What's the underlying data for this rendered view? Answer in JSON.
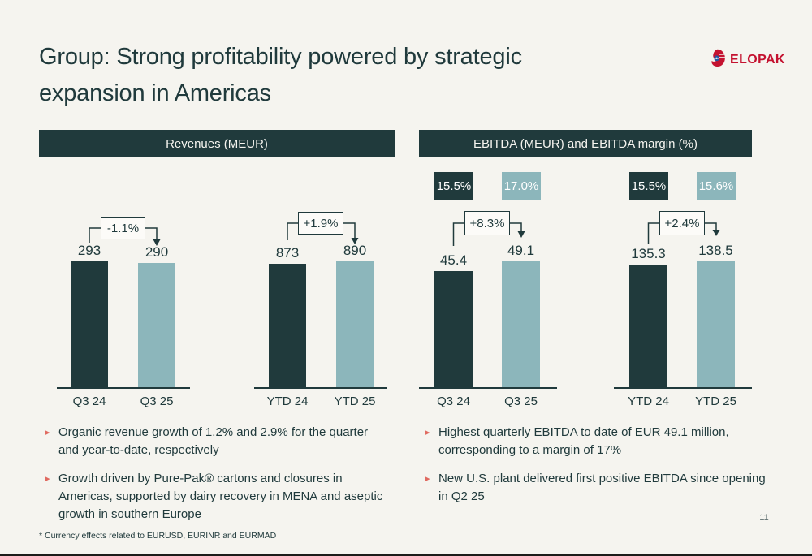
{
  "slide": {
    "title_lines": [
      "Group: Strong profitability powered by strategic",
      "expansion in Americas"
    ],
    "logo_text": "ELOPAK",
    "page_number": "11",
    "footnote": "* Currency effects related to EURUSD, EURINR and EURMAD"
  },
  "sections": [
    {
      "header": "Revenues (MEUR)",
      "bullets": [
        "Organic revenue growth of 1.2% and 2.9% for the quarter and year-to-date, respectively",
        "Growth driven by Pure-Pak® cartons and closures in Americas, supported by dairy recovery in MENA and aseptic growth in southern Europe"
      ]
    },
    {
      "header": "EBITDA (MEUR) and EBITDA margin (%)",
      "bullets": [
        "Highest quarterly EBITDA to date of EUR 49.1 million, corresponding to a margin of 17%",
        "New U.S. plant delivered first positive EBITDA since opening in Q2 25"
      ]
    }
  ],
  "colors": {
    "background": "#f5f4ef",
    "dark_teal": "#203a3c",
    "light_teal": "#8cb6bb",
    "logo_red": "#c41230",
    "bullet_marker": "#e0695f",
    "delta_box_bg": "#fcfbf8"
  },
  "chart_data": [
    {
      "type": "bar",
      "title": "Revenues (MEUR)",
      "categories": [
        "Q3 24",
        "Q3 25"
      ],
      "values": [
        293,
        290
      ],
      "value_labels": [
        "293",
        "290"
      ],
      "delta_label": "-1.1%",
      "grid": false,
      "legend": "none"
    },
    {
      "type": "bar",
      "title": "Revenues (MEUR)",
      "categories": [
        "YTD 24",
        "YTD 25"
      ],
      "values": [
        873,
        890
      ],
      "value_labels": [
        "873",
        "890"
      ],
      "delta_label": "+1.9%",
      "grid": false,
      "legend": "none"
    },
    {
      "type": "bar",
      "title": "EBITDA (MEUR) and EBITDA margin (%)",
      "categories": [
        "Q3 24",
        "Q3 25"
      ],
      "values": [
        45.4,
        49.1
      ],
      "value_labels": [
        "45.4",
        "49.1"
      ],
      "margin_labels": [
        "15.5%",
        "17.0%"
      ],
      "delta_label": "+8.3%",
      "grid": false,
      "legend": "none"
    },
    {
      "type": "bar",
      "title": "EBITDA (MEUR) and EBITDA margin (%)",
      "categories": [
        "YTD 24",
        "YTD 25"
      ],
      "values": [
        135.3,
        138.5
      ],
      "value_labels": [
        "135.3",
        "138.5"
      ],
      "margin_labels": [
        "15.5%",
        "15.6%"
      ],
      "delta_label": "+2.4%",
      "grid": false,
      "legend": "none"
    }
  ]
}
